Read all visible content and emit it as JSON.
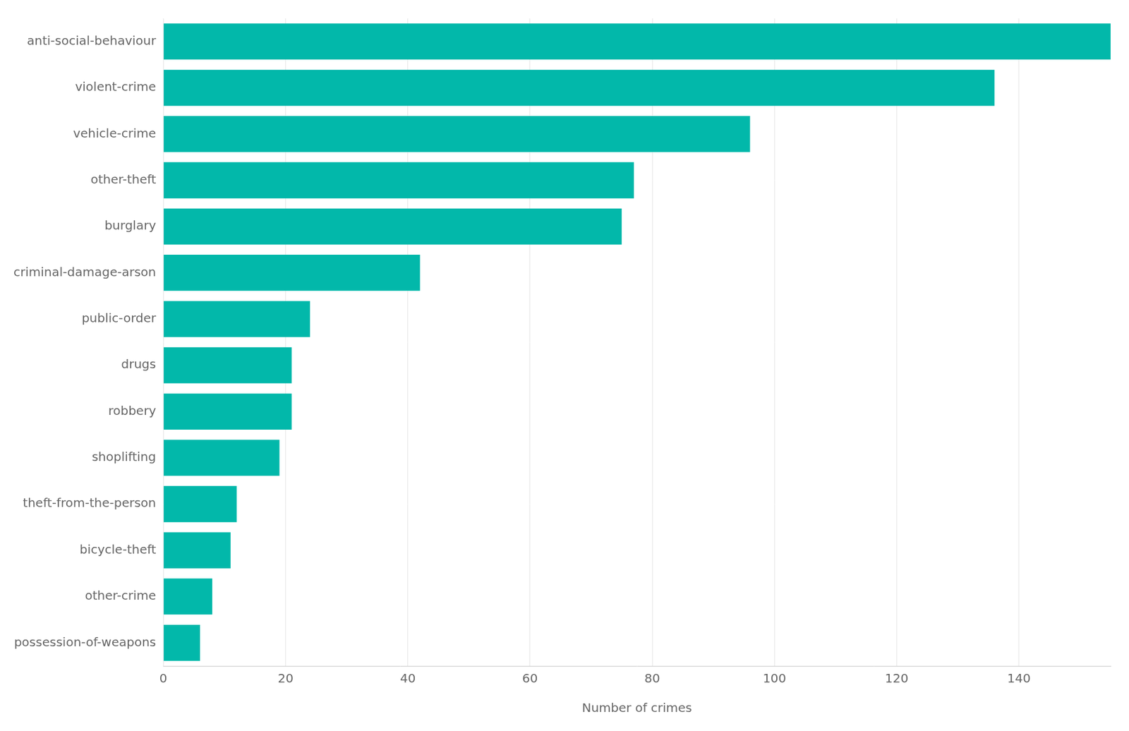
{
  "chart_data": {
    "type": "bar",
    "orientation": "horizontal",
    "x_label": "Number of crimes",
    "categories": [
      "anti-social-behaviour",
      "violent-crime",
      "vehicle-crime",
      "other-theft",
      "burglary",
      "criminal-damage-arson",
      "public-order",
      "drugs",
      "robbery",
      "shoplifting",
      "theft-from-the-person",
      "bicycle-theft",
      "other-crime",
      "possession-of-weapons"
    ],
    "values": [
      155,
      136,
      96,
      77,
      75,
      42,
      24,
      21,
      21,
      19,
      12,
      11,
      8,
      6
    ],
    "color": "#02b8aa",
    "xlim": [
      0,
      155
    ],
    "xticks": [
      0,
      20,
      40,
      60,
      80,
      100,
      120,
      140
    ],
    "grid": true
  }
}
